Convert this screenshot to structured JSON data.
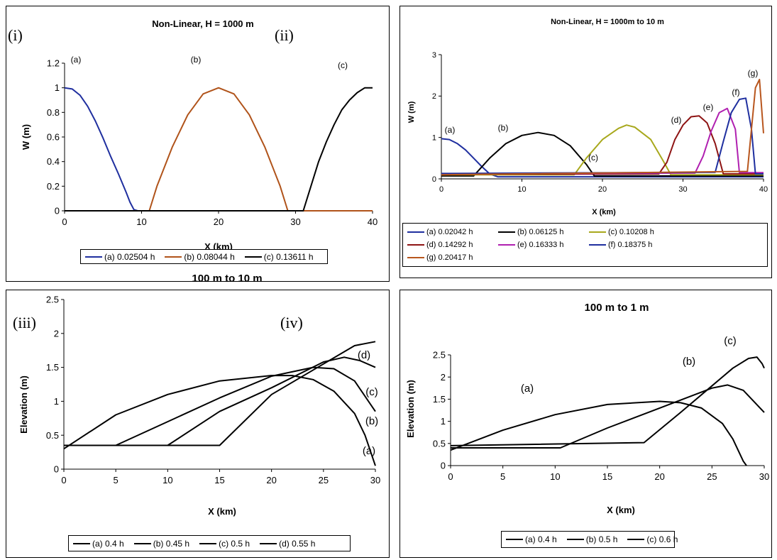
{
  "colors": {
    "navy": "#1F2F9F",
    "rust": "#B0531A",
    "black": "#000000",
    "olive": "#A8A81C",
    "maroon": "#8E1414",
    "purple": "#B020B0",
    "brown": "#B8561E"
  },
  "panel_labels": [
    "(i)",
    "(ii)",
    "(iii)",
    "(iv)"
  ],
  "chart_data": [
    {
      "type": "line",
      "title": "Non-Linear, H = 1000 m",
      "xlabel": "X (km)",
      "ylabel": "W (m)",
      "xlim": [
        0,
        40
      ],
      "ylim": [
        0,
        1.2
      ],
      "xticks": [
        "0",
        "10",
        "20",
        "30",
        "40"
      ],
      "yticks": [
        "0",
        "0.2",
        "0.4",
        "0.6",
        "0.8",
        "1",
        "1.2"
      ],
      "grid": false,
      "legend_position": "bottom",
      "series": [
        {
          "name": "(a) 0.02504 h",
          "label": "(a)",
          "color": "#1F2F9F",
          "x": [
            0,
            1,
            2,
            3,
            4,
            5,
            6,
            7,
            8,
            8.5,
            9,
            9.5,
            40
          ],
          "y": [
            1,
            0.99,
            0.94,
            0.85,
            0.73,
            0.59,
            0.44,
            0.3,
            0.15,
            0.07,
            0.01,
            0,
            0
          ]
        },
        {
          "name": "(b) 0.08044 h",
          "label": "(b)",
          "color": "#B0531A",
          "x": [
            0,
            11,
            12,
            14,
            16,
            18,
            20,
            22,
            24,
            26,
            28,
            29,
            40
          ],
          "y": [
            0,
            0,
            0.2,
            0.52,
            0.78,
            0.95,
            1,
            0.95,
            0.78,
            0.52,
            0.2,
            0,
            0
          ]
        },
        {
          "name": "(c) 0.13611 h",
          "label": "(c)",
          "color": "#000000",
          "x": [
            0,
            31,
            32,
            33,
            34,
            35,
            36,
            37,
            38,
            39,
            40
          ],
          "y": [
            0,
            0,
            0.2,
            0.4,
            0.56,
            0.7,
            0.82,
            0.9,
            0.96,
            1,
            1
          ]
        }
      ]
    },
    {
      "type": "line",
      "title": "Non-Linear, H = 1000m to 10 m",
      "xlabel": "X (km)",
      "ylabel": "W (m)",
      "xlim": [
        0,
        40
      ],
      "ylim": [
        0,
        3
      ],
      "xticks": [
        "0",
        "10",
        "20",
        "30",
        "40"
      ],
      "yticks": [
        "0",
        "1",
        "2",
        "3"
      ],
      "grid": false,
      "legend_position": "bottom",
      "series": [
        {
          "name": "(a) 0.02042 h",
          "label": "(a)",
          "color": "#1F2F9F",
          "x": [
            0,
            1,
            2,
            3,
            4,
            5,
            6,
            7,
            40
          ],
          "y": [
            0.97,
            0.95,
            0.85,
            0.7,
            0.5,
            0.3,
            0.12,
            0.05,
            0.05
          ]
        },
        {
          "name": "(b) 0.06125 h",
          "label": "(b)",
          "color": "#000000",
          "x": [
            0,
            4,
            6,
            8,
            10,
            12,
            14,
            16,
            18,
            19,
            40
          ],
          "y": [
            0.07,
            0.07,
            0.5,
            0.85,
            1.05,
            1.12,
            1.05,
            0.8,
            0.35,
            0.07,
            0.07
          ]
        },
        {
          "name": "(c) 0.10208 h",
          "label": "(c)",
          "color": "#A8A81C",
          "x": [
            0,
            16.5,
            18,
            20,
            22,
            23,
            24,
            26,
            27.5,
            28.5,
            40
          ],
          "y": [
            0.1,
            0.1,
            0.5,
            0.95,
            1.22,
            1.3,
            1.25,
            0.95,
            0.45,
            0.1,
            0.1
          ]
        },
        {
          "name": "(d) 0.14292 h",
          "label": "(d)",
          "color": "#8E1414",
          "x": [
            0,
            27,
            28,
            29,
            30,
            31,
            32,
            33,
            34,
            35,
            40
          ],
          "y": [
            0.11,
            0.12,
            0.4,
            0.95,
            1.3,
            1.5,
            1.52,
            1.35,
            0.85,
            0.12,
            0.12
          ]
        },
        {
          "name": "(e) 0.16333 h",
          "label": "(e)",
          "color": "#B020B0",
          "x": [
            0,
            31.5,
            32.5,
            33.5,
            34.5,
            35.5,
            36.5,
            37,
            40
          ],
          "y": [
            0.12,
            0.14,
            0.55,
            1.15,
            1.6,
            1.7,
            1.2,
            0.15,
            0.15
          ]
        },
        {
          "name": "(f) 0.18375 h",
          "label": "(f)",
          "color": "#1F2F9F",
          "x": [
            0,
            34,
            35,
            36,
            37,
            37.8,
            38.5,
            39,
            40
          ],
          "y": [
            0.13,
            0.16,
            0.9,
            1.6,
            1.92,
            1.95,
            1.2,
            0.12,
            0.12
          ]
        },
        {
          "name": "(g) 0.20417 h",
          "label": "(g)",
          "color": "#B8561E",
          "x": [
            0,
            38,
            38.5,
            39,
            39.5,
            40
          ],
          "y": [
            0.1,
            0.18,
            1.2,
            2.2,
            2.4,
            1.1
          ]
        }
      ]
    },
    {
      "type": "line",
      "title": "100 m to 10 m",
      "xlabel": "X (km)",
      "ylabel": "Elevation (m)",
      "xlim": [
        0,
        30
      ],
      "ylim": [
        0,
        2.5
      ],
      "xticks": [
        "0",
        "5",
        "10",
        "15",
        "20",
        "25",
        "30"
      ],
      "yticks": [
        "0",
        "0.5",
        "1",
        "1.5",
        "2",
        "2.5"
      ],
      "grid": false,
      "legend_position": "bottom",
      "series": [
        {
          "name": "(a) 0.4 h",
          "label": "(a)",
          "color": "#000000",
          "x": [
            0,
            5,
            10,
            15,
            20,
            22,
            24,
            26,
            28,
            29,
            30
          ],
          "y": [
            0.3,
            0.8,
            1.1,
            1.3,
            1.38,
            1.38,
            1.32,
            1.15,
            0.82,
            0.5,
            0.05
          ]
        },
        {
          "name": "(b) 0.45 h",
          "label": "(b)",
          "color": "#000000",
          "x": [
            0,
            5,
            10,
            15,
            20,
            24,
            26,
            28,
            30
          ],
          "y": [
            0.35,
            0.35,
            0.7,
            1.05,
            1.37,
            1.5,
            1.48,
            1.3,
            0.85
          ]
        },
        {
          "name": "(c) 0.5 h",
          "label": "(c)",
          "color": "#000000",
          "x": [
            0,
            10,
            15,
            20,
            25,
            27,
            28.5,
            30
          ],
          "y": [
            0.35,
            0.35,
            0.85,
            1.2,
            1.58,
            1.65,
            1.6,
            1.5
          ]
        },
        {
          "name": "(d) 0.55 h",
          "label": "(d)",
          "color": "#000000",
          "x": [
            0,
            15,
            20,
            25,
            28,
            30
          ],
          "y": [
            0.35,
            0.35,
            1.1,
            1.55,
            1.82,
            1.88
          ]
        }
      ],
      "annotations": [
        "(a)",
        "(b)",
        "(c)",
        "(d)"
      ]
    },
    {
      "type": "line",
      "title": "100 m to 1 m",
      "xlabel": "X (km)",
      "ylabel": "Elevation (m)",
      "xlim": [
        0,
        30
      ],
      "ylim": [
        0,
        2.5
      ],
      "xticks": [
        "0",
        "5",
        "10",
        "15",
        "20",
        "25",
        "30"
      ],
      "yticks": [
        "0",
        "0.5",
        "1",
        "1.5",
        "2",
        "2.5"
      ],
      "grid": false,
      "legend_position": "bottom",
      "series": [
        {
          "name": "(a) 0.4 h",
          "label": "(a)",
          "color": "#000000",
          "x": [
            0,
            5,
            10,
            15,
            20,
            22,
            24,
            26,
            27,
            28,
            28.3
          ],
          "y": [
            0.35,
            0.8,
            1.15,
            1.38,
            1.45,
            1.42,
            1.3,
            0.95,
            0.6,
            0.1,
            0
          ]
        },
        {
          "name": "(b) 0.5 h",
          "label": "(b)",
          "color": "#000000",
          "x": [
            0,
            10.5,
            15,
            20,
            25,
            26.5,
            28,
            30
          ],
          "y": [
            0.4,
            0.4,
            0.85,
            1.3,
            1.75,
            1.82,
            1.7,
            1.2
          ]
        },
        {
          "name": "(c) 0.6 h",
          "label": "(c)",
          "color": "#000000",
          "x": [
            0,
            18.5,
            22,
            25,
            27,
            28.5,
            29.3,
            29.8,
            30
          ],
          "y": [
            0.45,
            0.52,
            1.2,
            1.8,
            2.2,
            2.42,
            2.45,
            2.3,
            2.2
          ]
        }
      ],
      "annotations": [
        "(a)",
        "(b)",
        "(c)"
      ]
    }
  ]
}
